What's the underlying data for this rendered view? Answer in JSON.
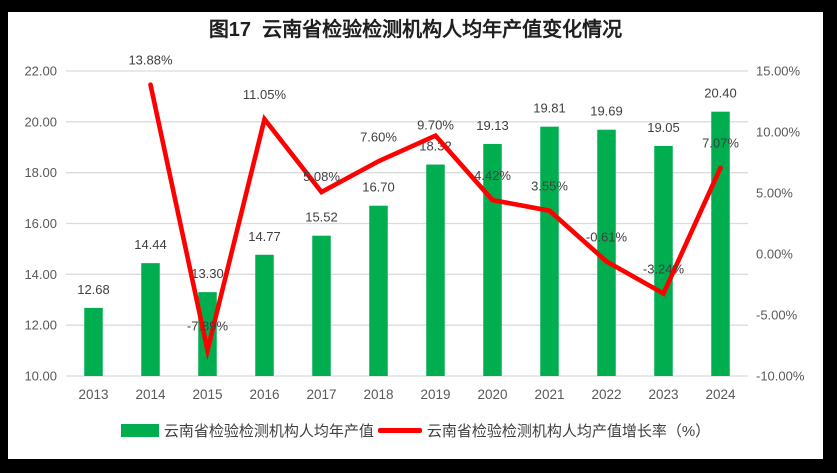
{
  "chart_data": {
    "type": "combo-bar-line",
    "title": "图17  云南省检验检测机构人均年产值变化情况",
    "categories": [
      "2013",
      "2014",
      "2015",
      "2016",
      "2017",
      "2018",
      "2019",
      "2020",
      "2021",
      "2022",
      "2023",
      "2024"
    ],
    "series": [
      {
        "name": "云南省检验检测机构人均年产值",
        "type": "bar",
        "axis": "left",
        "color": "#00AE50",
        "values": [
          12.68,
          14.44,
          13.3,
          14.77,
          15.52,
          16.7,
          18.32,
          19.13,
          19.81,
          19.69,
          19.05,
          20.4
        ],
        "labels": [
          "12.68",
          "14.44",
          "13.30",
          "14.77",
          "15.52",
          "16.70",
          "18.32",
          "19.13",
          "19.81",
          "19.69",
          "19.05",
          "20.40"
        ]
      },
      {
        "name": "云南省检验检测机构人均产值增长率（%）",
        "type": "line",
        "axis": "right",
        "color": "#FF0000",
        "values": [
          null,
          13.88,
          -7.89,
          11.05,
          5.08,
          7.6,
          9.7,
          4.42,
          3.55,
          -0.61,
          -3.24,
          7.07
        ],
        "labels": [
          null,
          "13.88%",
          "-7.89%",
          "11.05%",
          "5.08%",
          "7.60%",
          "9.70%",
          "4.42%",
          "3.55%",
          "-0.61%",
          "-3.24%",
          "7.07%"
        ],
        "label_dy": [
          null,
          -20,
          -20,
          -20,
          -11,
          -20,
          -6,
          -20,
          -20,
          -20,
          -20,
          -20
        ]
      }
    ],
    "left_axis": {
      "min": 10,
      "max": 22,
      "step": 2,
      "ticks": [
        "22.00",
        "20.00",
        "18.00",
        "16.00",
        "14.00",
        "12.00",
        "10.00"
      ]
    },
    "right_axis": {
      "min": -10,
      "max": 15,
      "step": 5,
      "ticks": [
        "15.00%",
        "10.00%",
        "5.00%",
        "0.00%",
        "-5.00%",
        "-10.00%"
      ]
    },
    "grid": true,
    "legend_position": "bottom",
    "colors": {
      "bar": "#00AE50",
      "line": "#FF0000",
      "grid": "#DBDBDB",
      "tick_text": "#595959",
      "data_label": "#404040",
      "title_text": "#1F1F1F",
      "paper": "#FFFFFF",
      "frame": "#000000"
    }
  }
}
